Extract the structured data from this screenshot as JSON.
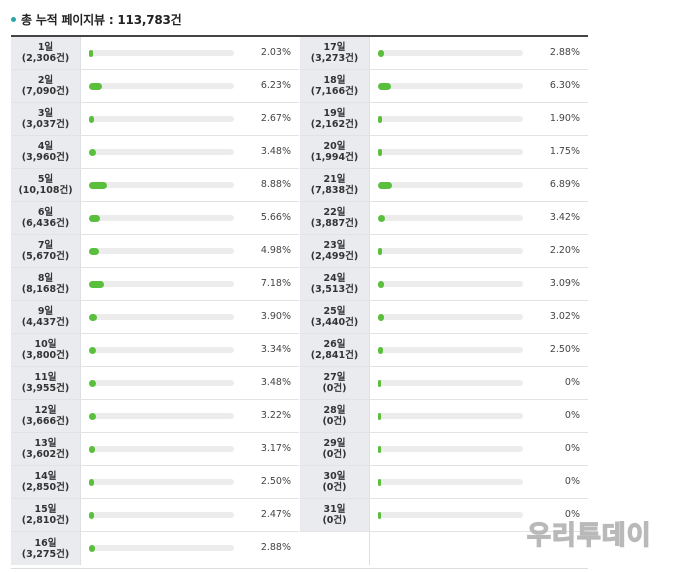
{
  "header": {
    "title": "총 누적 페이지뷰 : 113,783건"
  },
  "left": [
    {
      "day": "1일",
      "count": "(2,306건)",
      "pct": "2.03%",
      "value": 2.03
    },
    {
      "day": "2일",
      "count": "(7,090건)",
      "pct": "6.23%",
      "value": 6.23
    },
    {
      "day": "3일",
      "count": "(3,037건)",
      "pct": "2.67%",
      "value": 2.67
    },
    {
      "day": "4일",
      "count": "(3,960건)",
      "pct": "3.48%",
      "value": 3.48
    },
    {
      "day": "5일",
      "count": "(10,108건)",
      "pct": "8.88%",
      "value": 8.88
    },
    {
      "day": "6일",
      "count": "(6,436건)",
      "pct": "5.66%",
      "value": 5.66
    },
    {
      "day": "7일",
      "count": "(5,670건)",
      "pct": "4.98%",
      "value": 4.98
    },
    {
      "day": "8일",
      "count": "(8,168건)",
      "pct": "7.18%",
      "value": 7.18
    },
    {
      "day": "9일",
      "count": "(4,437건)",
      "pct": "3.90%",
      "value": 3.9
    },
    {
      "day": "10일",
      "count": "(3,800건)",
      "pct": "3.34%",
      "value": 3.34
    },
    {
      "day": "11일",
      "count": "(3,955건)",
      "pct": "3.48%",
      "value": 3.48
    },
    {
      "day": "12일",
      "count": "(3,666건)",
      "pct": "3.22%",
      "value": 3.22
    },
    {
      "day": "13일",
      "count": "(3,602건)",
      "pct": "3.17%",
      "value": 3.17
    },
    {
      "day": "14일",
      "count": "(2,850건)",
      "pct": "2.50%",
      "value": 2.5
    },
    {
      "day": "15일",
      "count": "(2,810건)",
      "pct": "2.47%",
      "value": 2.47
    },
    {
      "day": "16일",
      "count": "(3,275건)",
      "pct": "2.88%",
      "value": 2.88
    }
  ],
  "right": [
    {
      "day": "17일",
      "count": "(3,273건)",
      "pct": "2.88%",
      "value": 2.88
    },
    {
      "day": "18일",
      "count": "(7,166건)",
      "pct": "6.30%",
      "value": 6.3
    },
    {
      "day": "19일",
      "count": "(2,162건)",
      "pct": "1.90%",
      "value": 1.9
    },
    {
      "day": "20일",
      "count": "(1,994건)",
      "pct": "1.75%",
      "value": 1.75
    },
    {
      "day": "21일",
      "count": "(7,838건)",
      "pct": "6.89%",
      "value": 6.89
    },
    {
      "day": "22일",
      "count": "(3,887건)",
      "pct": "3.42%",
      "value": 3.42
    },
    {
      "day": "23일",
      "count": "(2,499건)",
      "pct": "2.20%",
      "value": 2.2
    },
    {
      "day": "24일",
      "count": "(3,513건)",
      "pct": "3.09%",
      "value": 3.09
    },
    {
      "day": "25일",
      "count": "(3,440건)",
      "pct": "3.02%",
      "value": 3.02
    },
    {
      "day": "26일",
      "count": "(2,841건)",
      "pct": "2.50%",
      "value": 2.5
    },
    {
      "day": "27일",
      "count": "(0건)",
      "pct": "0%",
      "value": 0
    },
    {
      "day": "28일",
      "count": "(0건)",
      "pct": "0%",
      "value": 0
    },
    {
      "day": "29일",
      "count": "(0건)",
      "pct": "0%",
      "value": 0
    },
    {
      "day": "30일",
      "count": "(0건)",
      "pct": "0%",
      "value": 0
    },
    {
      "day": "31일",
      "count": "(0건)",
      "pct": "0%",
      "value": 0
    }
  ],
  "watermark": {
    "text": "우리투데이"
  },
  "colors": {
    "bar_fill": "#5bbf3e",
    "bar_track": "#ececec",
    "header_dot": "#2aa6a6"
  }
}
